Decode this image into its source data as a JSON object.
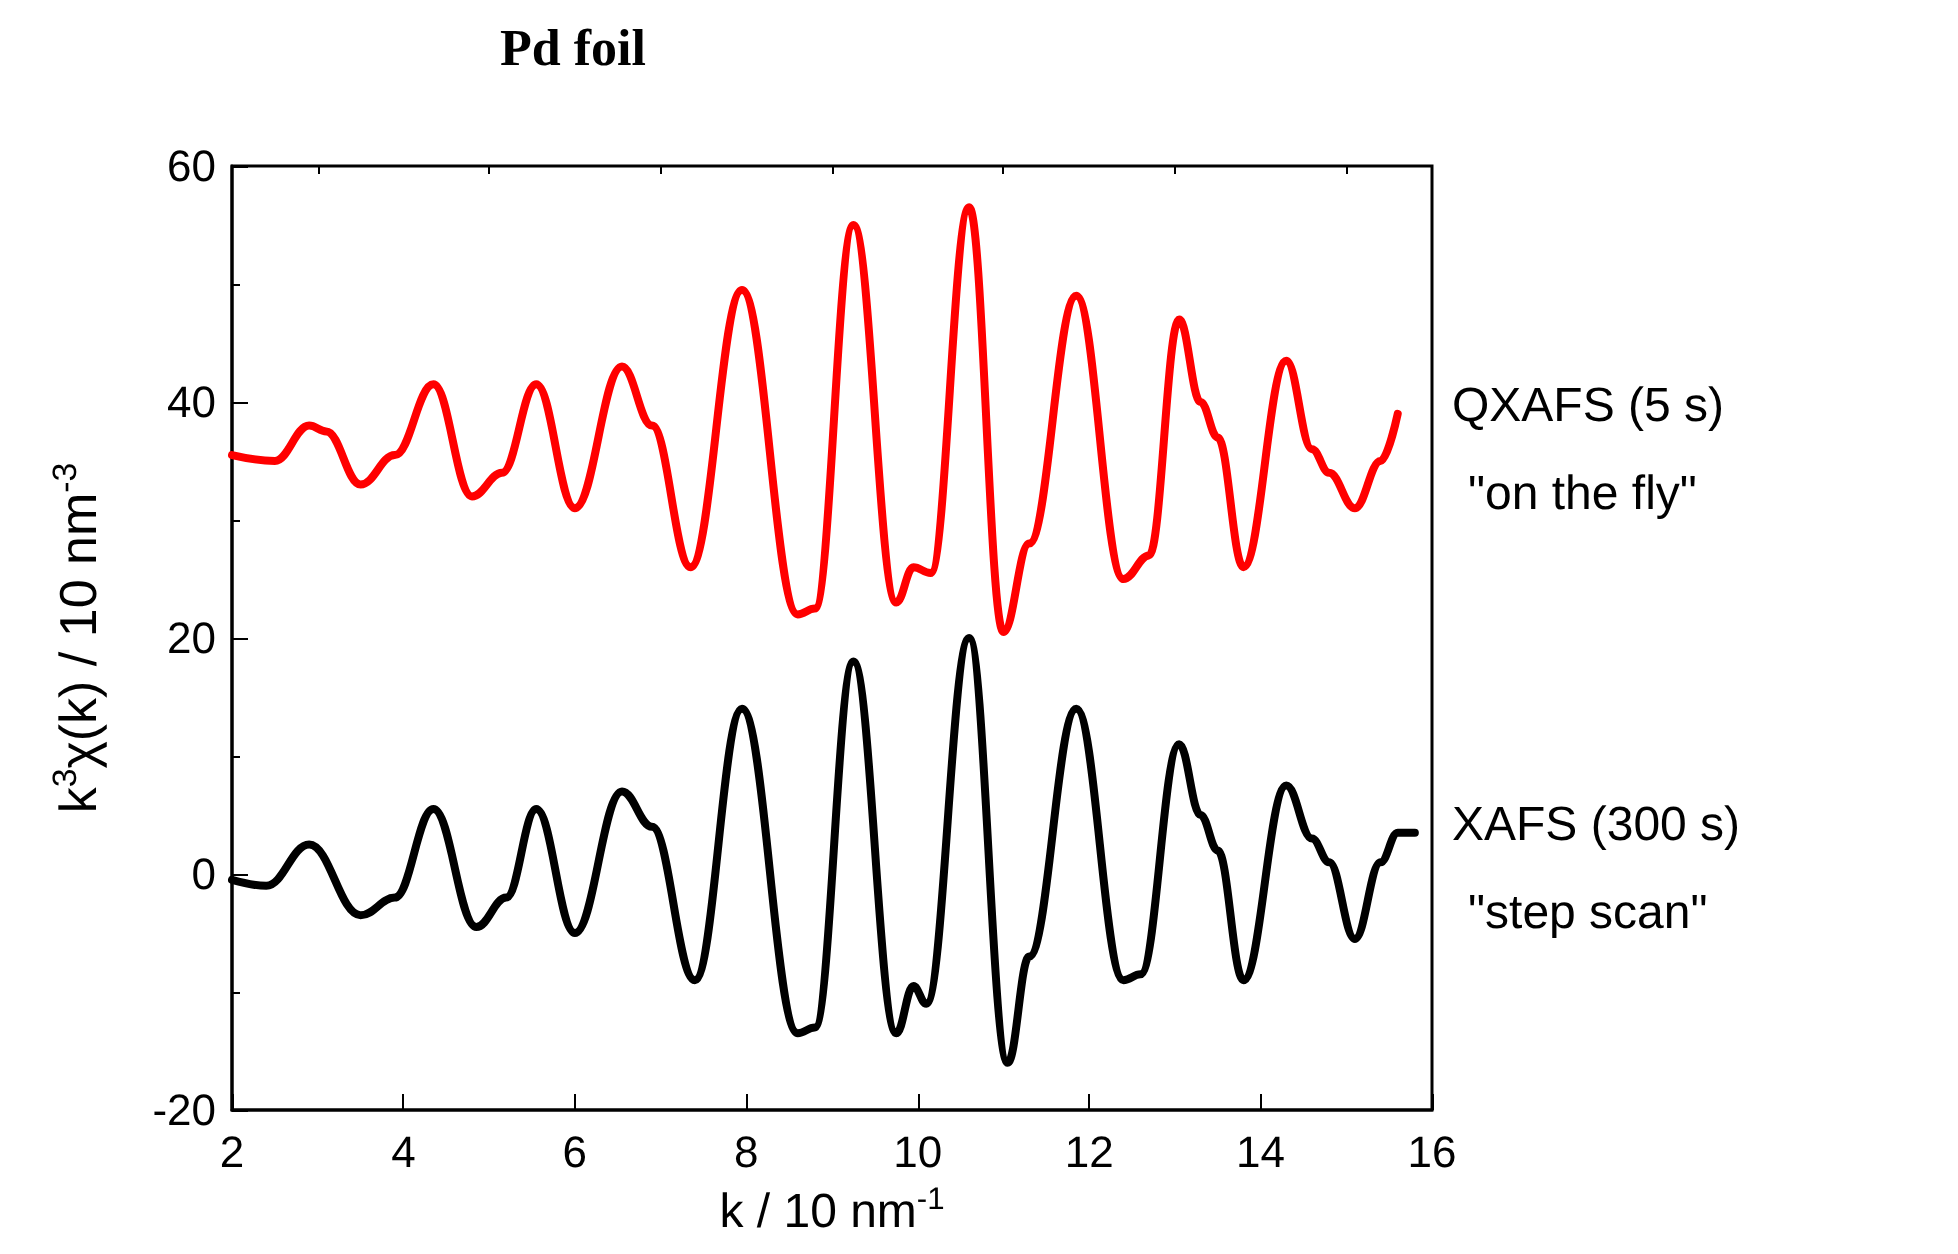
{
  "chart_data": {
    "type": "line",
    "title": "Pd foil",
    "xlabel": "k / 10 nm$^{-1}$",
    "ylabel": "k$^{3}$χ(k) / 10 nm$^{-3}$",
    "xlim": [
      2,
      16
    ],
    "xticks": [
      2,
      4,
      6,
      8,
      10,
      12,
      14,
      16
    ],
    "ylim": [
      -20,
      60
    ],
    "yticks": [
      -20,
      0,
      20,
      40,
      60
    ],
    "grid": false,
    "legend": false,
    "marker": "none",
    "line_style": "solid",
    "annotations": [
      "\"on the fly\"",
      "\"step scan\""
    ],
    "series": [
      {
        "name": "QXAFS (5 s)",
        "color": "#ff0000",
        "x": [
          2,
          2.5,
          2.9,
          3.1,
          3.5,
          3.9,
          4.35,
          4.8,
          5.15,
          5.55,
          6.0,
          6.55,
          6.9,
          7.35,
          7.95,
          8.6,
          8.8,
          9.25,
          9.75,
          9.95,
          10.15,
          10.6,
          11.0,
          11.3,
          11.85,
          12.4,
          12.7,
          13.05,
          13.3,
          13.5,
          13.8,
          14.3,
          14.6,
          14.8,
          15.1,
          15.4,
          15.6
        ],
        "values": [
          35.5,
          35,
          38,
          37.5,
          33,
          35.5,
          41.5,
          32,
          34,
          41.5,
          31,
          43,
          38,
          26,
          49.5,
          22,
          22.5,
          55,
          23,
          26,
          25.5,
          56.5,
          20.5,
          28,
          49,
          25,
          27,
          47,
          40,
          37,
          26,
          43.5,
          36,
          34,
          31,
          35,
          39
        ]
      },
      {
        "name": "XAFS (300 s)",
        "color": "#000000",
        "x": [
          2,
          2.4,
          2.9,
          3.5,
          3.9,
          4.35,
          4.85,
          5.2,
          5.55,
          6.0,
          6.55,
          6.9,
          7.4,
          7.95,
          8.6,
          8.8,
          9.25,
          9.75,
          9.95,
          10.1,
          10.6,
          11.05,
          11.3,
          11.85,
          12.4,
          12.6,
          13.05,
          13.3,
          13.5,
          13.8,
          14.3,
          14.6,
          14.8,
          15.1,
          15.4,
          15.6,
          15.8
        ],
        "values": [
          -0.5,
          -1,
          2.5,
          -3.5,
          -2,
          5.5,
          -4.5,
          -2,
          5.5,
          -5,
          7,
          4,
          -9,
          14,
          -13.5,
          -13,
          18,
          -13.5,
          -9.5,
          -11,
          20,
          -16,
          -7,
          14,
          -9,
          -8.5,
          11,
          5,
          2,
          -9,
          7.5,
          3,
          1,
          -5.5,
          1,
          3.5,
          3.5
        ]
      }
    ]
  }
}
